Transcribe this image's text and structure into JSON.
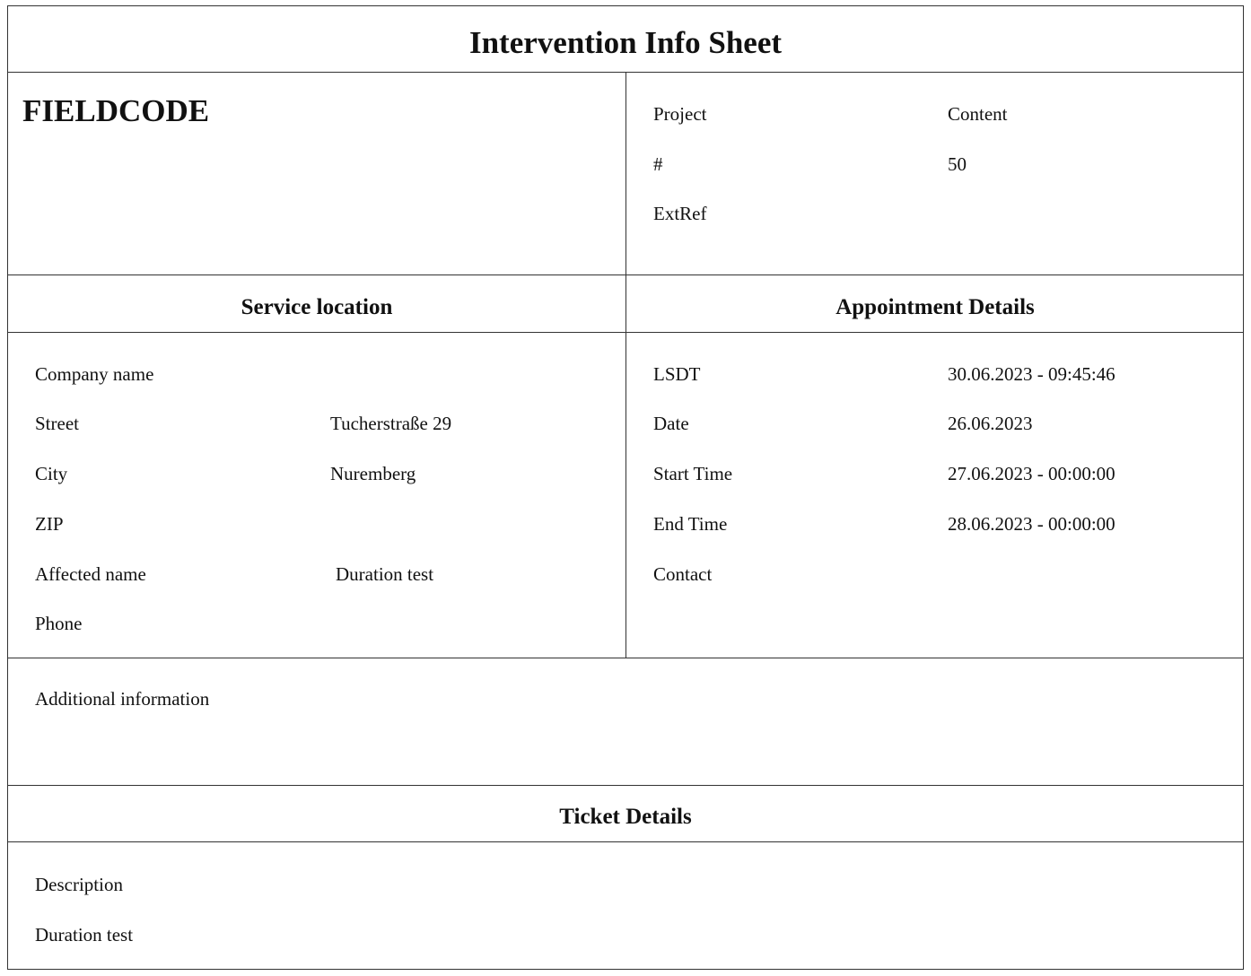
{
  "title": "Intervention Info Sheet",
  "logo_text": "FIELDCODE",
  "header_info": [
    {
      "label": "Project",
      "value": "Content"
    },
    {
      "label": "#",
      "value": "50"
    },
    {
      "label": "ExtRef",
      "value": ""
    }
  ],
  "service_location": {
    "heading": "Service location",
    "rows": [
      {
        "label": "Company name",
        "value": ""
      },
      {
        "label": "Street",
        "value": "Tucherstraße 29"
      },
      {
        "label": "City",
        "value": "Nuremberg"
      },
      {
        "label": "ZIP",
        "value": ""
      },
      {
        "label": "Affected name",
        "value": "Duration test"
      },
      {
        "label": "Phone",
        "value": ""
      }
    ]
  },
  "appointment_details": {
    "heading": "Appointment Details",
    "rows": [
      {
        "label": "LSDT",
        "value": "30.06.2023 - 09:45:46"
      },
      {
        "label": "Date",
        "value": "26.06.2023"
      },
      {
        "label": "Start Time",
        "value": "27.06.2023 - 00:00:00"
      },
      {
        "label": "End Time",
        "value": "28.06.2023 - 00:00:00"
      },
      {
        "label": "Contact",
        "value": ""
      }
    ]
  },
  "additional_information": {
    "label": "Additional information"
  },
  "ticket_details": {
    "heading": "Ticket Details",
    "description_label": "Description",
    "description_value": "Duration test"
  }
}
